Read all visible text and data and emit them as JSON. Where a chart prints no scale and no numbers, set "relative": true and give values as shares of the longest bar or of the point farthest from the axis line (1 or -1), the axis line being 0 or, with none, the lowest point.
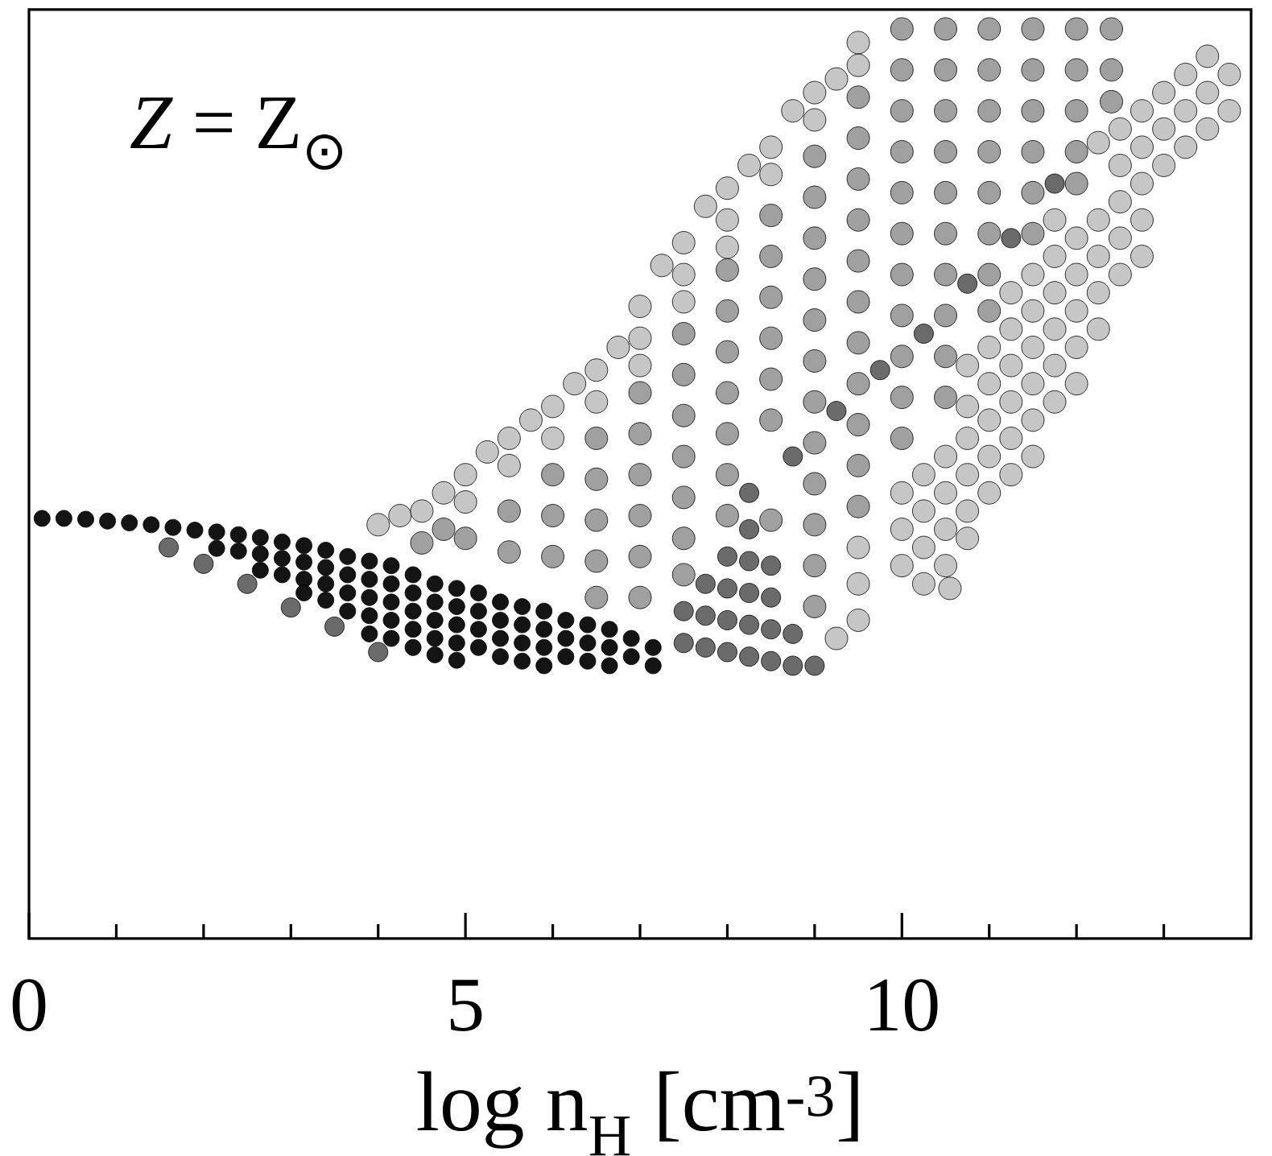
{
  "chart_data": {
    "type": "scatter",
    "relative": true,
    "marker": "circle",
    "xlabel": "log n$_{H}$ [cm$^{-3}$]",
    "annotations": [
      "*Z* = Z$_{⊙}$"
    ],
    "xlim": [
      0,
      14
    ],
    "xticks": [
      0,
      {
        "value": 1,
        "label": null
      },
      {
        "value": 2,
        "label": null
      },
      {
        "value": 3,
        "label": null
      },
      {
        "value": 4,
        "label": null
      },
      5,
      {
        "value": 6,
        "label": null
      },
      {
        "value": 7,
        "label": null
      },
      {
        "value": 8,
        "label": null
      },
      {
        "value": 9,
        "label": null
      },
      10,
      {
        "value": 11,
        "label": null
      },
      {
        "value": 12,
        "label": null
      },
      {
        "value": 13,
        "label": null
      }
    ],
    "series": [
      {
        "color": "#c6c6c6",
        "x": [
          4.0,
          4.25,
          4.5,
          4.75,
          5.0,
          5.0,
          5.25,
          5.5,
          5.5,
          5.75,
          6.0,
          6.0,
          6.25,
          6.5,
          6.5,
          6.75,
          7.0,
          7.0,
          7.0,
          7.25,
          7.5,
          7.5,
          7.5,
          7.75,
          8.0,
          8.0,
          8.0,
          8.25,
          8.5,
          8.5,
          8.75,
          9.0,
          9.0,
          9.25,
          9.5,
          9.5,
          9.25,
          9.5,
          9.5,
          9.5,
          10.0,
          10.0,
          10.0,
          10.25,
          10.25,
          10.25,
          10.25,
          10.5,
          10.5,
          10.5,
          10.5,
          10.55,
          10.75,
          10.75,
          10.75,
          10.75,
          10.75,
          10.75,
          11.0,
          11.0,
          11.0,
          11.0,
          11.0,
          11.25,
          11.25,
          11.25,
          11.25,
          11.25,
          11.25,
          11.5,
          11.5,
          11.5,
          11.5,
          11.5,
          11.5,
          11.75,
          11.75,
          11.75,
          11.75,
          11.75,
          11.75,
          12.0,
          12.0,
          12.0,
          12.0,
          12.0,
          12.25,
          12.25,
          12.25,
          12.25,
          12.25,
          12.5,
          12.5,
          12.5,
          12.5,
          12.5,
          12.75,
          12.75,
          12.75,
          12.75,
          12.75,
          13.0,
          13.0,
          13.0,
          13.25,
          13.25,
          13.25,
          13.5,
          13.5,
          13.5,
          13.75,
          13.75
        ],
        "values": [
          0.455,
          0.465,
          0.47,
          0.49,
          0.51,
          0.48,
          0.535,
          0.55,
          0.52,
          0.57,
          0.585,
          0.55,
          0.61,
          0.625,
          0.59,
          0.65,
          0.695,
          0.66,
          0.63,
          0.74,
          0.765,
          0.73,
          0.7,
          0.805,
          0.825,
          0.79,
          0.76,
          0.85,
          0.87,
          0.84,
          0.91,
          0.93,
          0.9,
          0.945,
          0.985,
          0.96,
          0.33,
          0.35,
          0.39,
          0.43,
          0.41,
          0.45,
          0.49,
          0.39,
          0.43,
          0.47,
          0.51,
          0.41,
          0.45,
          0.49,
          0.53,
          0.385,
          0.44,
          0.47,
          0.51,
          0.55,
          0.585,
          0.63,
          0.49,
          0.53,
          0.57,
          0.61,
          0.65,
          0.51,
          0.55,
          0.59,
          0.63,
          0.67,
          0.71,
          0.53,
          0.57,
          0.61,
          0.65,
          0.69,
          0.73,
          0.59,
          0.63,
          0.67,
          0.71,
          0.75,
          0.79,
          0.61,
          0.65,
          0.69,
          0.73,
          0.77,
          0.67,
          0.71,
          0.75,
          0.79,
          0.875,
          0.73,
          0.77,
          0.81,
          0.85,
          0.89,
          0.75,
          0.79,
          0.83,
          0.87,
          0.91,
          0.85,
          0.89,
          0.93,
          0.87,
          0.91,
          0.95,
          0.89,
          0.93,
          0.97,
          0.91,
          0.95
        ]
      },
      {
        "color": "#a0a0a0",
        "x": [
          4.5,
          4.75,
          5.0,
          5.5,
          5.5,
          6.0,
          6.0,
          6.0,
          6.5,
          6.5,
          6.5,
          6.5,
          6.5,
          7.0,
          7.0,
          7.0,
          7.0,
          7.0,
          7.0,
          7.5,
          7.5,
          7.5,
          7.5,
          7.5,
          7.5,
          7.5,
          8.0,
          8.0,
          8.0,
          8.0,
          8.0,
          8.0,
          8.0,
          8.5,
          8.5,
          8.5,
          8.5,
          8.5,
          8.5,
          8.5,
          9.0,
          9.0,
          9.0,
          9.0,
          9.0,
          9.0,
          9.0,
          9.0,
          9.0,
          9.0,
          9.0,
          9.0,
          9.5,
          9.5,
          9.5,
          9.5,
          9.5,
          9.5,
          9.5,
          9.5,
          9.5,
          9.5,
          9.5,
          10.0,
          10.0,
          10.0,
          10.0,
          10.0,
          10.0,
          10.0,
          10.0,
          10.0,
          10.0,
          10.0,
          10.5,
          10.5,
          10.5,
          10.5,
          10.5,
          10.5,
          10.5,
          10.5,
          10.5,
          10.5,
          11.0,
          11.0,
          11.0,
          11.0,
          11.0,
          11.0,
          11.0,
          11.0,
          11.5,
          11.5,
          11.5,
          11.5,
          11.5,
          11.5,
          12.0,
          12.0,
          12.0,
          12.0,
          12.0,
          12.4,
          12.4,
          12.4
        ],
        "values": [
          0.435,
          0.45,
          0.44,
          0.47,
          0.425,
          0.51,
          0.465,
          0.42,
          0.55,
          0.505,
          0.46,
          0.415,
          0.375,
          0.6,
          0.555,
          0.51,
          0.465,
          0.42,
          0.375,
          0.665,
          0.62,
          0.575,
          0.53,
          0.485,
          0.44,
          0.4,
          0.735,
          0.69,
          0.645,
          0.6,
          0.555,
          0.51,
          0.465,
          0.795,
          0.75,
          0.705,
          0.66,
          0.615,
          0.57,
          0.46,
          0.86,
          0.815,
          0.77,
          0.725,
          0.68,
          0.635,
          0.59,
          0.545,
          0.5,
          0.455,
          0.41,
          0.365,
          0.925,
          0.88,
          0.835,
          0.79,
          0.745,
          0.7,
          0.655,
          0.61,
          0.565,
          0.52,
          0.475,
          1.0,
          0.955,
          0.91,
          0.865,
          0.82,
          0.775,
          0.73,
          0.685,
          0.64,
          0.595,
          0.55,
          1.0,
          0.955,
          0.91,
          0.865,
          0.82,
          0.775,
          0.73,
          0.685,
          0.64,
          0.595,
          1.0,
          0.955,
          0.91,
          0.865,
          0.82,
          0.775,
          0.73,
          0.69,
          1.0,
          0.955,
          0.91,
          0.865,
          0.82,
          0.775,
          1.0,
          0.955,
          0.91,
          0.865,
          0.83,
          1.0,
          0.955,
          0.92
        ]
      },
      {
        "color": "#6b6b6b",
        "x": [
          11.75,
          11.25,
          10.75,
          10.25,
          9.75,
          9.25,
          8.75,
          8.25,
          7.5,
          7.75,
          8.0,
          8.25,
          8.5,
          8.75,
          9.0,
          7.5,
          7.75,
          8.0,
          8.25,
          8.5,
          8.75,
          7.75,
          8.0,
          8.25,
          8.5,
          8.0,
          8.25,
          8.5,
          8.25,
          1.6,
          2.0,
          2.5,
          3.0,
          3.5,
          4.0
        ],
        "values": [
          0.83,
          0.77,
          0.72,
          0.665,
          0.625,
          0.58,
          0.53,
          0.49,
          0.325,
          0.32,
          0.315,
          0.31,
          0.305,
          0.3,
          0.3,
          0.36,
          0.355,
          0.35,
          0.345,
          0.34,
          0.335,
          0.39,
          0.385,
          0.38,
          0.375,
          0.42,
          0.415,
          0.41,
          0.45,
          0.43,
          0.412,
          0.39,
          0.364,
          0.343,
          0.315
        ]
      },
      {
        "color": "#141414",
        "x": [
          0.15,
          0.4,
          0.65,
          0.9,
          1.15,
          1.4,
          1.65,
          1.9,
          2.15,
          2.15,
          2.4,
          2.4,
          2.65,
          2.65,
          2.65,
          2.9,
          2.9,
          2.9,
          3.15,
          3.15,
          3.15,
          3.15,
          3.4,
          3.4,
          3.4,
          3.4,
          3.65,
          3.65,
          3.65,
          3.65,
          3.9,
          3.9,
          3.9,
          3.9,
          3.9,
          4.15,
          4.15,
          4.15,
          4.15,
          4.15,
          4.4,
          4.4,
          4.4,
          4.4,
          4.4,
          4.65,
          4.65,
          4.65,
          4.65,
          4.65,
          4.9,
          4.9,
          4.9,
          4.9,
          4.9,
          5.15,
          5.15,
          5.15,
          5.15,
          5.4,
          5.4,
          5.4,
          5.4,
          5.65,
          5.65,
          5.65,
          5.65,
          5.9,
          5.9,
          5.9,
          5.9,
          6.15,
          6.15,
          6.15,
          6.4,
          6.4,
          6.4,
          6.65,
          6.65,
          6.65,
          6.9,
          6.9,
          7.15,
          7.15
        ],
        "values": [
          0.462,
          0.462,
          0.461,
          0.459,
          0.457,
          0.455,
          0.452,
          0.449,
          0.447,
          0.429,
          0.444,
          0.426,
          0.441,
          0.423,
          0.405,
          0.436,
          0.418,
          0.4,
          0.432,
          0.414,
          0.395,
          0.38,
          0.427,
          0.408,
          0.39,
          0.372,
          0.42,
          0.4,
          0.38,
          0.36,
          0.415,
          0.395,
          0.375,
          0.355,
          0.335,
          0.41,
          0.39,
          0.37,
          0.35,
          0.33,
          0.4,
          0.38,
          0.36,
          0.34,
          0.32,
          0.39,
          0.37,
          0.35,
          0.33,
          0.312,
          0.385,
          0.365,
          0.345,
          0.325,
          0.306,
          0.38,
          0.36,
          0.34,
          0.32,
          0.37,
          0.35,
          0.33,
          0.31,
          0.365,
          0.345,
          0.325,
          0.305,
          0.36,
          0.34,
          0.32,
          0.3,
          0.35,
          0.33,
          0.31,
          0.345,
          0.325,
          0.305,
          0.34,
          0.32,
          0.3,
          0.33,
          0.31,
          0.32,
          0.3
        ]
      }
    ]
  }
}
